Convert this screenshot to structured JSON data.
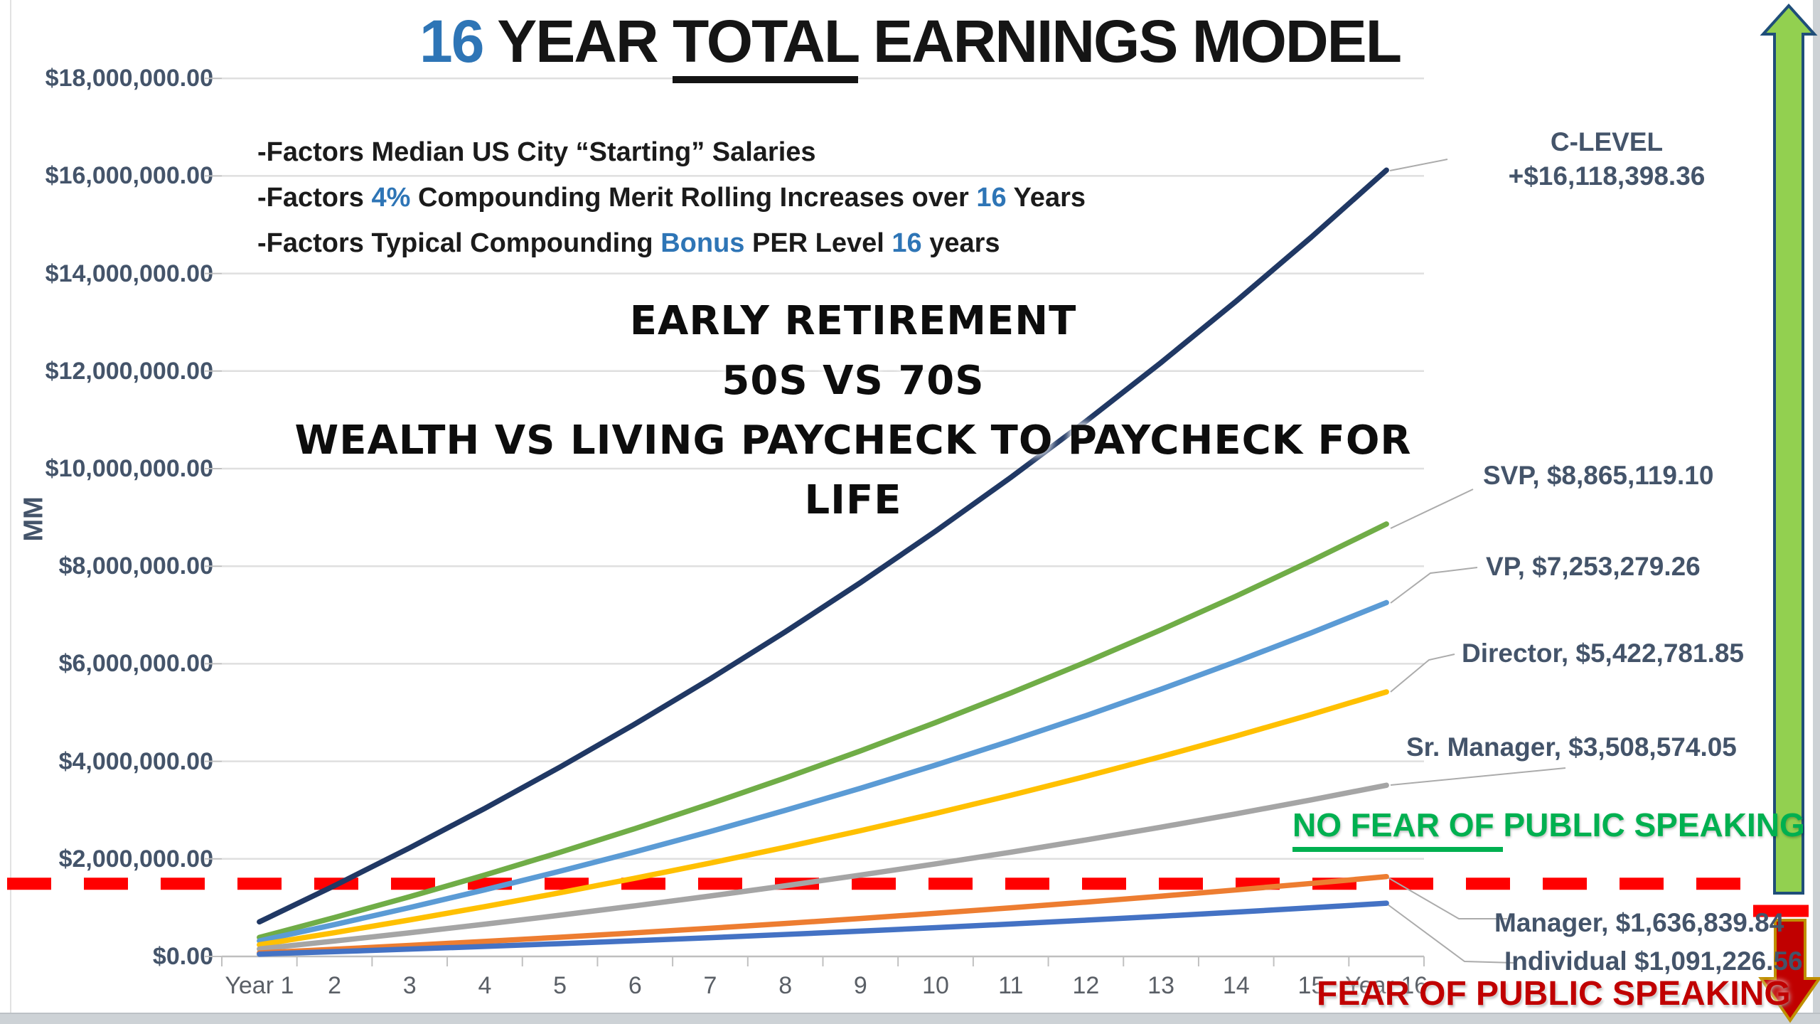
{
  "title": {
    "part1": "16",
    "part2": " YEAR ",
    "part3": "TOTAL",
    "part4": " EARNINGS MODEL"
  },
  "factors": {
    "line1": {
      "a": "-Factors Median US City “Starting” Salaries"
    },
    "line2": {
      "a": "-Factors ",
      "b": "4%",
      "c": " Compounding Merit Rolling Increases over ",
      "d": "16",
      "e": " Years"
    },
    "line3": {
      "a": "-Factors Typical Compounding ",
      "b": "Bonus",
      "c": " PER Level ",
      "d": "16",
      "e": " years"
    }
  },
  "poster": {
    "line1": "EARLY RETIREMENT",
    "line2": "50S VS 70S",
    "line3": "WEALTH VS LIVING PAYCHECK TO PAYCHECK FOR LIFE"
  },
  "annotations": {
    "no_fear_underlined": "NO FEAR OF ",
    "no_fear_rest": "PUBLIC SPEAKING",
    "fear_text": "FEAR OF PUBLIC SPEAKING"
  },
  "colors": {
    "accent_blue": "#2E75B6",
    "label_ink": "#44546A",
    "green_text": "#00B050",
    "red_text": "#C00000",
    "dash_red": "#FF0000",
    "gridline": "#DFDFDF",
    "axis_line": "#BFBFBF",
    "leader": "#ABABAB"
  },
  "arrows": {
    "up": {
      "fill": "#92D050",
      "stroke": "#1F4E79"
    },
    "down": {
      "fill": "#C00000",
      "stroke": "#BF8F00"
    }
  },
  "chart_data": {
    "type": "line",
    "title": "16 YEAR TOTAL EARNINGS MODEL",
    "ylabel": "MM",
    "ylim_musd": [
      0,
      18
    ],
    "grid": true,
    "legend_position": "labels-right",
    "categories": [
      "Year 1",
      "2",
      "3",
      "4",
      "5",
      "6",
      "7",
      "8",
      "9",
      "10",
      "11",
      "12",
      "13",
      "14",
      "15",
      "Year 16"
    ],
    "y_ticks": [
      {
        "label": "$18,000,000.00",
        "value_musd": 18
      },
      {
        "label": "$16,000,000.00",
        "value_musd": 16
      },
      {
        "label": "$14,000,000.00",
        "value_musd": 14
      },
      {
        "label": "$12,000,000.00",
        "value_musd": 12
      },
      {
        "label": "$10,000,000.00",
        "value_musd": 10
      },
      {
        "label": "$8,000,000.00",
        "value_musd": 8
      },
      {
        "label": "$6,000,000.00",
        "value_musd": 6
      },
      {
        "label": "$4,000,000.00",
        "value_musd": 4
      },
      {
        "label": "$2,000,000.00",
        "value_musd": 2
      },
      {
        "label": "$0.00",
        "value_musd": 0
      }
    ],
    "threshold_line": {
      "style": "dashed",
      "color": "#FF0000",
      "value_musd": 1.49
    },
    "series": [
      {
        "name": "C-LEVEL",
        "label": "C-LEVEL",
        "label2": "+$16,118,398.36",
        "end_value": 16118398.36,
        "color": "#203864",
        "values_musd": [
          0.709,
          1.451,
          2.226,
          3.035,
          3.881,
          4.766,
          5.69,
          6.655,
          7.663,
          8.718,
          9.819,
          10.97,
          12.174,
          13.432,
          14.745,
          16.118
        ]
      },
      {
        "name": "SVP",
        "label": "SVP, $8,865,119.10",
        "end_value": 8865119.1,
        "color": "#70AD47",
        "values_musd": [
          0.39,
          0.798,
          1.224,
          1.669,
          2.135,
          2.621,
          3.129,
          3.66,
          4.214,
          4.795,
          5.401,
          6.033,
          6.696,
          7.387,
          8.11,
          8.865
        ]
      },
      {
        "name": "VP",
        "label": "VP, $7,253,279.26",
        "end_value": 7253279.26,
        "color": "#5B9BD5",
        "values_musd": [
          0.319,
          0.653,
          1.002,
          1.366,
          1.747,
          2.145,
          2.56,
          2.995,
          3.448,
          3.923,
          4.419,
          4.936,
          5.478,
          6.044,
          6.635,
          7.253
        ]
      },
      {
        "name": "Director",
        "label": "Director, $5,422,781.85",
        "end_value": 5422781.85,
        "color": "#FFC000",
        "values_musd": [
          0.239,
          0.488,
          0.749,
          1.021,
          1.306,
          1.604,
          1.914,
          2.239,
          2.578,
          2.933,
          3.304,
          3.691,
          4.096,
          4.519,
          4.961,
          5.423
        ]
      },
      {
        "name": "Sr. Manager",
        "label": "Sr. Manager, $3,508,574.05",
        "end_value": 3508574.05,
        "color": "#A5A5A5",
        "values_musd": [
          0.154,
          0.316,
          0.485,
          0.661,
          0.845,
          1.038,
          1.239,
          1.449,
          1.668,
          1.898,
          2.137,
          2.388,
          2.65,
          2.924,
          3.21,
          3.509
        ]
      },
      {
        "name": "Manager",
        "label": "Manager, $1,636,839.84",
        "end_value": 1636839.84,
        "color": "#ED7D31",
        "values_musd": [
          0.072,
          0.147,
          0.226,
          0.308,
          0.394,
          0.484,
          0.578,
          0.676,
          0.778,
          0.885,
          0.997,
          1.114,
          1.236,
          1.364,
          1.497,
          1.637
        ]
      },
      {
        "name": "Individual",
        "label": "Individual $1,091,226.56",
        "end_value": 1091226.56,
        "color": "#4472C4",
        "values_musd": [
          0.048,
          0.098,
          0.151,
          0.205,
          0.263,
          0.323,
          0.385,
          0.451,
          0.519,
          0.59,
          0.665,
          0.743,
          0.824,
          0.909,
          0.998,
          1.091
        ]
      }
    ]
  }
}
